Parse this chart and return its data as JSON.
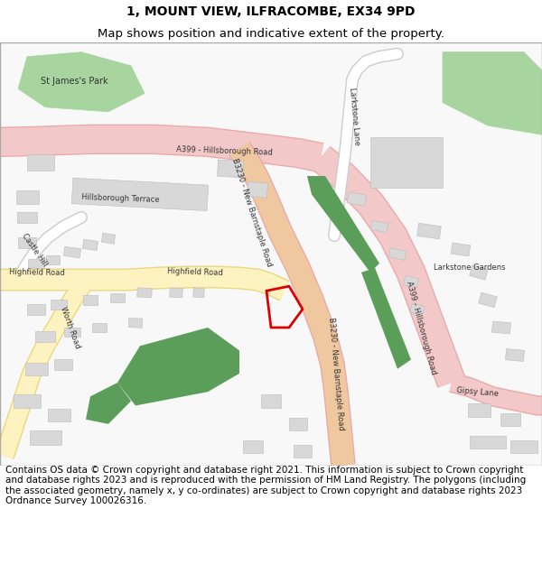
{
  "title_line1": "1, MOUNT VIEW, ILFRACOMBE, EX34 9PD",
  "title_line2": "Map shows position and indicative extent of the property.",
  "footer_text": "Contains OS data © Crown copyright and database right 2021. This information is subject to Crown copyright and database rights 2023 and is reproduced with the permission of HM Land Registry. The polygons (including the associated geometry, namely x, y co-ordinates) are subject to Crown copyright and database rights 2023 Ordnance Survey 100026316.",
  "title_fontsize": 10,
  "footer_fontsize": 7.5,
  "bg_color": "#ffffff",
  "map_bg": "#f8f8f8",
  "border_color": "#999999",
  "road_a399_fill": "#f2c8c8",
  "road_a399_edge": "#e8aaaa",
  "road_b3230_fill": "#f2c8c8",
  "road_b3230_edge": "#e8aaaa",
  "road_yellow_fill": "#fdf3c0",
  "road_yellow_edge": "#e8d880",
  "road_white_fill": "#ffffff",
  "road_white_edge": "#cccccc",
  "green_dark": "#5a9e5a",
  "green_light": "#a8d4a0",
  "building_fill": "#d8d8d8",
  "building_edge": "#bbbbbb",
  "text_color": "#333333",
  "red_line": "#dd0000"
}
